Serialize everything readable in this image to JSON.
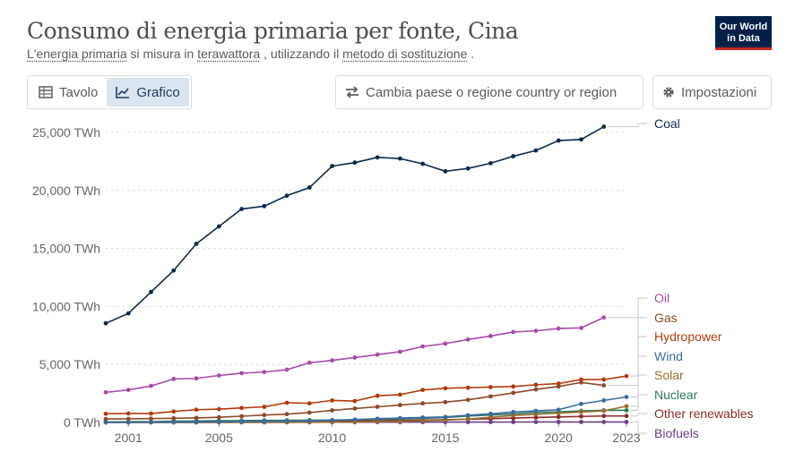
{
  "header": {
    "title": "Consumo di energia primaria per fonte, Cina",
    "subtitle_p1": "L'energia primaria",
    "subtitle_p2": " si misura in ",
    "subtitle_p3": "terawattora",
    "subtitle_p4": " , utilizzando il ",
    "subtitle_p5": "metodo di sostituzione",
    "subtitle_p6": " ."
  },
  "logo": {
    "line1": "Our World",
    "line2": "in Data"
  },
  "tabs": [
    {
      "label": "Tavolo",
      "icon": "table-icon"
    },
    {
      "label": "Grafico",
      "icon": "line-chart-icon"
    }
  ],
  "change_country_label": "Cambia paese o regione country or region",
  "settings_label": "Impostazioni",
  "colors": {
    "Coal": "#0c2a4d",
    "Oil": "#a64ca6",
    "Gas": "#8c4a2b",
    "Hydropower": "#b23c0e",
    "Wind": "#3d6aa3",
    "Solar": "#996d2e",
    "Nuclear": "#2e7a5b",
    "Other renewables": "#8a2b2b",
    "Biofuels": "#6b3f8c"
  },
  "chart_data": {
    "type": "line",
    "title": "Consumo di energia primaria per fonte, Cina",
    "ylabel": "TWh",
    "ylim": [
      0,
      25000
    ],
    "yticks": [
      {
        "value": 0,
        "label": "0 TWh"
      },
      {
        "value": 5000,
        "label": "5,000 TWh"
      },
      {
        "value": 10000,
        "label": "10,000 TWh"
      },
      {
        "value": 15000,
        "label": "15,000 TWh"
      },
      {
        "value": 20000,
        "label": "20,000 TWh"
      },
      {
        "value": 25000,
        "label": "25,000 TWh"
      }
    ],
    "xticks": [
      "2001",
      "2005",
      "2010",
      "2015",
      "2020",
      "2023"
    ],
    "x": [
      2000,
      2001,
      2002,
      2003,
      2004,
      2005,
      2006,
      2007,
      2008,
      2009,
      2010,
      2011,
      2012,
      2013,
      2014,
      2015,
      2016,
      2017,
      2018,
      2019,
      2020,
      2021,
      2022,
      2023
    ],
    "series": [
      {
        "name": "Coal",
        "values": [
          8550,
          9400,
          11250,
          13100,
          15400,
          16900,
          18400,
          18650,
          19550,
          20250,
          22100,
          22400,
          22850,
          22750,
          22300,
          21650,
          21900,
          22350,
          22950,
          23450,
          24300,
          24400,
          25500,
          null
        ]
      },
      {
        "name": "Oil",
        "values": [
          2600,
          2800,
          3150,
          3750,
          3800,
          4050,
          4250,
          4350,
          4550,
          5150,
          5350,
          5600,
          5850,
          6100,
          6550,
          6800,
          7150,
          7450,
          7800,
          7900,
          8100,
          8150,
          9050,
          null
        ]
      },
      {
        "name": "Gas",
        "values": [
          300,
          310,
          330,
          360,
          390,
          450,
          540,
          640,
          720,
          850,
          1050,
          1200,
          1350,
          1500,
          1650,
          1750,
          1950,
          2250,
          2550,
          2850,
          3100,
          3450,
          3200,
          null
        ]
      },
      {
        "name": "Hydropower",
        "values": [
          750,
          780,
          770,
          950,
          1100,
          1150,
          1250,
          1350,
          1700,
          1650,
          1900,
          1850,
          2300,
          2400,
          2800,
          2950,
          3000,
          3050,
          3100,
          3250,
          3350,
          3700,
          3700,
          4000
        ]
      },
      {
        "name": "Wind",
        "values": [
          15,
          20,
          25,
          30,
          40,
          50,
          70,
          90,
          110,
          140,
          180,
          250,
          320,
          380,
          430,
          480,
          620,
          750,
          900,
          1000,
          1100,
          1600,
          1900,
          2200
        ]
      },
      {
        "name": "Solar",
        "values": [
          2,
          2,
          3,
          3,
          4,
          5,
          6,
          8,
          10,
          15,
          25,
          40,
          60,
          90,
          140,
          200,
          300,
          450,
          600,
          700,
          800,
          900,
          1000,
          1400
        ]
      },
      {
        "name": "Nuclear",
        "values": [
          45,
          60,
          70,
          110,
          130,
          150,
          160,
          180,
          190,
          200,
          210,
          240,
          270,
          290,
          350,
          430,
          550,
          640,
          740,
          860,
          910,
          1000,
          1050,
          1050
        ]
      },
      {
        "name": "Other renewables",
        "values": [
          20,
          25,
          30,
          35,
          40,
          50,
          60,
          70,
          80,
          90,
          100,
          120,
          150,
          170,
          200,
          240,
          280,
          320,
          380,
          430,
          480,
          520,
          560,
          560
        ]
      },
      {
        "name": "Biofuels",
        "values": [
          5,
          5,
          5,
          6,
          8,
          10,
          12,
          15,
          18,
          20,
          22,
          23,
          24,
          25,
          28,
          30,
          33,
          36,
          38,
          40,
          42,
          44,
          45,
          45
        ]
      }
    ]
  }
}
